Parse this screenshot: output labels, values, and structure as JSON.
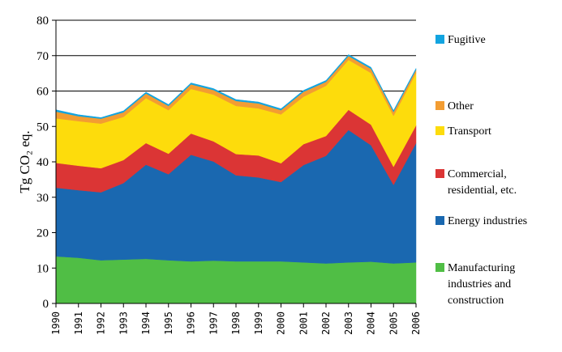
{
  "chart_data": {
    "type": "area",
    "stacked": true,
    "title": "",
    "xlabel": "",
    "ylabel": "Tg CO₂ eq.",
    "ylim": [
      0,
      80
    ],
    "yticks": [
      0,
      10,
      20,
      30,
      40,
      50,
      60,
      70,
      80
    ],
    "grid": "horizontal",
    "legend_position": "right",
    "categories": [
      "1990",
      "1991",
      "1992",
      "1993",
      "1994",
      "1995",
      "1996",
      "1997",
      "1998",
      "1999",
      "2000",
      "2001",
      "2002",
      "2003",
      "2004",
      "2005",
      "2006"
    ],
    "series": [
      {
        "name": "Manufacturing industries and construction",
        "color": "#50be45",
        "values": [
          13.3,
          12.9,
          12.2,
          12.4,
          12.6,
          12.2,
          11.9,
          12.1,
          11.9,
          11.9,
          11.9,
          11.6,
          11.3,
          11.6,
          11.8,
          11.3,
          11.6
        ]
      },
      {
        "name": "Energy industries",
        "color": "#1a68b0",
        "values": [
          19.4,
          19.1,
          19.2,
          21.6,
          26.6,
          24.3,
          30.1,
          28.0,
          24.3,
          23.7,
          22.4,
          27.5,
          30.4,
          37.4,
          32.9,
          22.2,
          33.7
        ]
      },
      {
        "name": "Commercial, residential, etc.",
        "color": "#db3535",
        "values": [
          7.0,
          6.9,
          6.8,
          6.5,
          6.1,
          5.8,
          6.0,
          5.7,
          6.0,
          6.2,
          5.3,
          5.9,
          5.6,
          5.7,
          5.8,
          5.1,
          5.0
        ]
      },
      {
        "name": "Transport",
        "color": "#fddc0c",
        "values": [
          12.6,
          12.6,
          12.6,
          12.2,
          12.7,
          12.3,
          12.6,
          13.2,
          13.6,
          13.3,
          13.8,
          13.4,
          14.2,
          14.1,
          14.6,
          14.4,
          14.8
        ]
      },
      {
        "name": "Other",
        "color": "#f39d32",
        "values": [
          1.9,
          1.4,
          1.4,
          1.3,
          1.3,
          1.2,
          1.3,
          1.3,
          1.4,
          1.4,
          1.2,
          1.4,
          1.1,
          1.1,
          1.2,
          1.1,
          0.9
        ]
      },
      {
        "name": "Fugitive",
        "color": "#12a4e0",
        "values": [
          0.5,
          0.4,
          0.3,
          0.4,
          0.4,
          0.4,
          0.4,
          0.4,
          0.4,
          0.4,
          0.4,
          0.4,
          0.4,
          0.4,
          0.4,
          0.4,
          0.4
        ]
      }
    ]
  },
  "legend": {
    "items": [
      {
        "label": "Fugitive",
        "color": "#12a4e0"
      },
      {
        "label": "Other",
        "color": "#f39d32"
      },
      {
        "label": "Transport",
        "color": "#fddc0c"
      },
      {
        "label": "Commercial,\nresidential, etc.",
        "color": "#db3535"
      },
      {
        "label": "Energy industries",
        "color": "#1a68b0"
      },
      {
        "label": "Manufacturing\nindustries and\nconstruction",
        "color": "#50be45"
      }
    ]
  }
}
